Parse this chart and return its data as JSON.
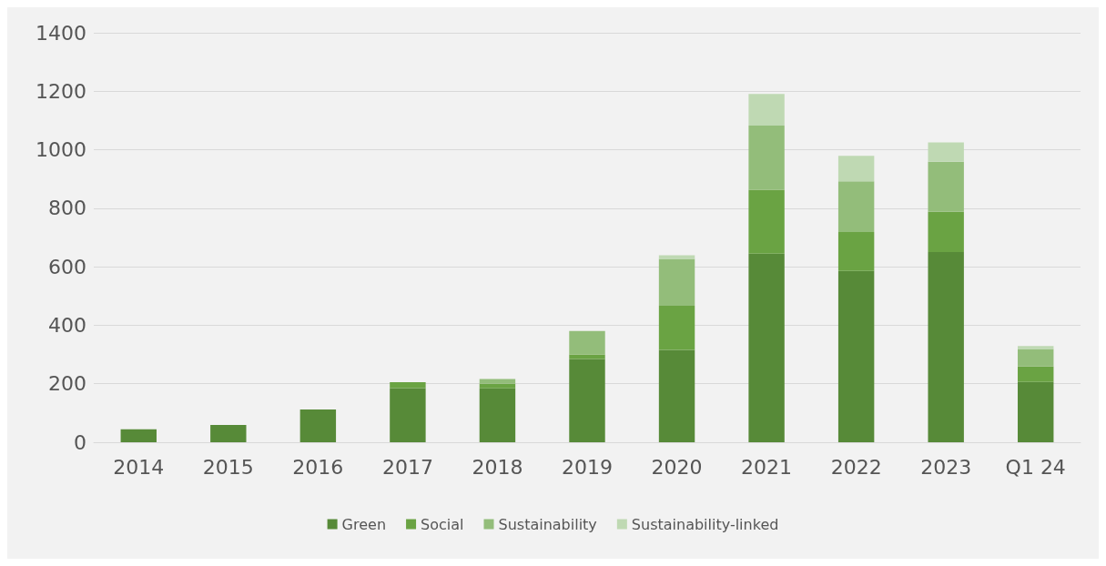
{
  "chart_data": {
    "type": "bar",
    "stacked": true,
    "categories": [
      "2014",
      "2015",
      "2016",
      "2017",
      "2018",
      "2019",
      "2020",
      "2021",
      "2022",
      "2023",
      "Q1 24"
    ],
    "series": [
      {
        "name": "Green",
        "color": "#578a38",
        "values": [
          44,
          59,
          112,
          185,
          184,
          285,
          316,
          645,
          586,
          650,
          206
        ]
      },
      {
        "name": "Social",
        "color": "#6aa343",
        "values": [
          0,
          0,
          0,
          20,
          16,
          15,
          151,
          218,
          133,
          138,
          53
        ]
      },
      {
        "name": "Sustainability",
        "color": "#93bd7a",
        "values": [
          0,
          0,
          0,
          0,
          16,
          80,
          160,
          220,
          173,
          171,
          60
        ]
      },
      {
        "name": "Sustainability-linked",
        "color": "#bfd9b3",
        "values": [
          0,
          0,
          0,
          0,
          0,
          0,
          12,
          108,
          87,
          66,
          10
        ]
      }
    ],
    "ylim": [
      0,
      1400
    ],
    "yticks": [
      0,
      200,
      400,
      600,
      800,
      1000,
      1200,
      1400
    ],
    "grid": "y",
    "legend": "bottom"
  }
}
